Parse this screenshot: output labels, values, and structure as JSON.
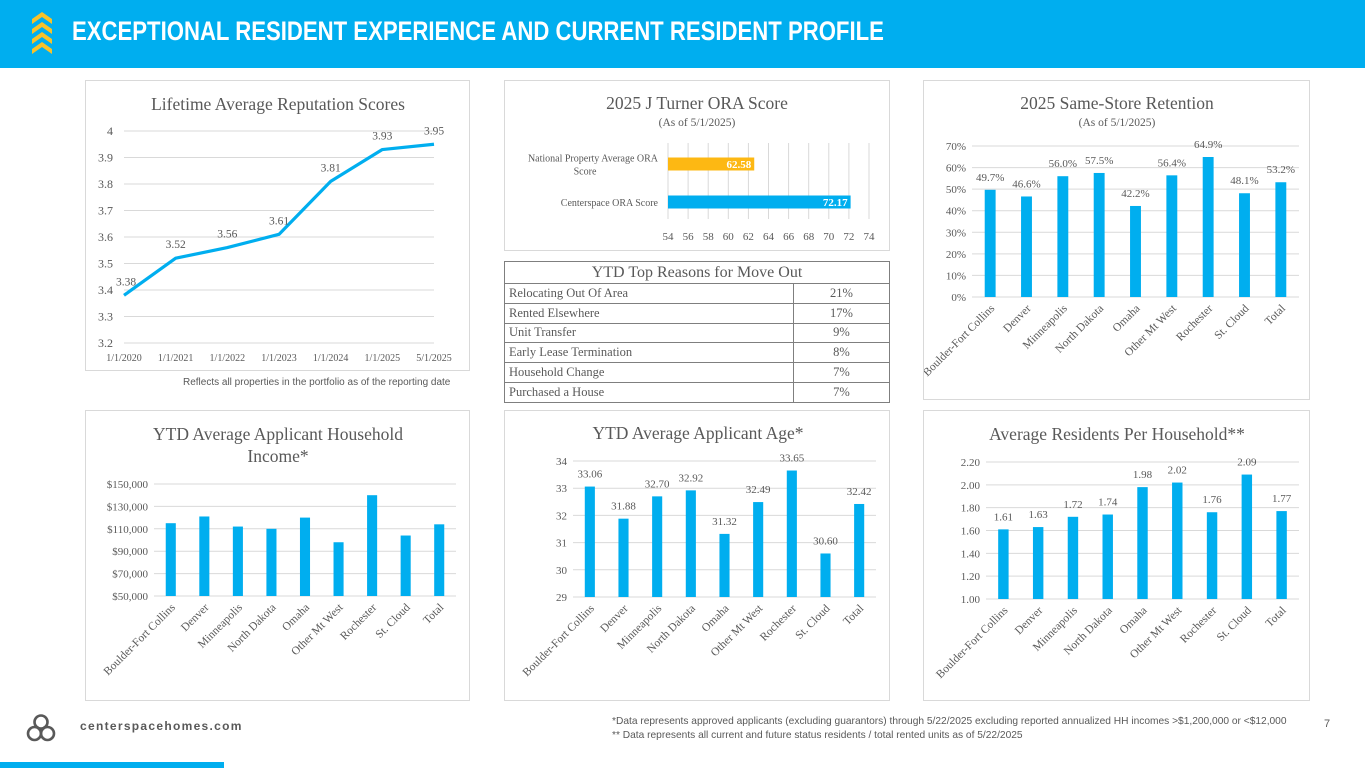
{
  "header": {
    "title": "EXCEPTIONAL RESIDENT EXPERIENCE AND CURRENT RESIDENT PROFILE",
    "logo_icon": "chevrons-up-icon",
    "accent_color": "#00aeef",
    "chevron_color": "#f7c22a"
  },
  "colors": {
    "bar": "#00aeef",
    "bar_secondary": "#fdb813",
    "grid": "#d9d9d9",
    "text": "#595959"
  },
  "reputation_note": "Reflects all properties in the portfolio as of the reporting date",
  "move_out_table": {
    "title": "YTD Top Reasons for Move Out",
    "rows": [
      {
        "reason": "Relocating Out Of Area",
        "pct": "21%"
      },
      {
        "reason": "Rented Elsewhere",
        "pct": "17%"
      },
      {
        "reason": "Unit Transfer",
        "pct": "9%"
      },
      {
        "reason": "Early Lease Termination",
        "pct": "8%"
      },
      {
        "reason": "Household Change",
        "pct": "7%"
      },
      {
        "reason": "Purchased a House",
        "pct": "7%"
      }
    ]
  },
  "footer": {
    "url": "centerspacehomes.com",
    "logo_icon": "centerspace-logo-icon",
    "footnote_1": "*Data represents approved applicants (excluding guarantors) through 5/22/2025 excluding reported annualized HH incomes >$1,200,000 or <$12,000",
    "footnote_2": "** Data represents all current and future status residents / total rented units as of 5/22/2025",
    "page_number": "7"
  },
  "chart_data": [
    {
      "id": "reputation",
      "type": "line",
      "title": "Lifetime Average Reputation Scores",
      "subtitle": "",
      "categories": [
        "1/1/2020",
        "1/1/2021",
        "1/1/2022",
        "1/1/2023",
        "1/1/2024",
        "1/1/2025",
        "5/1/2025"
      ],
      "values": [
        3.38,
        3.52,
        3.56,
        3.61,
        3.81,
        3.93,
        3.95
      ],
      "labels": [
        "3.38",
        "3.52",
        "3.56",
        "3.61",
        "3.81",
        "3.93",
        "3.95"
      ],
      "ylim": [
        3.2,
        4.0
      ],
      "yticks": [
        "3.2",
        "3.3",
        "3.4",
        "3.5",
        "3.6",
        "3.7",
        "3.8",
        "3.9",
        "4"
      ],
      "grid": true,
      "legend": "none"
    },
    {
      "id": "ora",
      "type": "bar",
      "orientation": "horizontal",
      "title": "2025 J Turner ORA Score",
      "subtitle": "(As of 5/1/2025)",
      "categories": [
        "National Property Average ORA Score",
        "Centerspace ORA Score"
      ],
      "category_lines": [
        [
          "National Property Average ORA",
          "Score"
        ],
        [
          "Centerspace ORA Score"
        ]
      ],
      "values": [
        62.58,
        72.17
      ],
      "labels": [
        "62.58",
        "72.17"
      ],
      "bar_colors": [
        "#fdb813",
        "#00aeef"
      ],
      "xlim": [
        54,
        74
      ],
      "xticks": [
        "54",
        "56",
        "58",
        "60",
        "62",
        "64",
        "66",
        "68",
        "70",
        "72",
        "74"
      ],
      "grid": true,
      "legend": "none"
    },
    {
      "id": "retention",
      "type": "bar",
      "title": "2025 Same-Store Retention",
      "subtitle": "(As of 5/1/2025)",
      "categories": [
        "Boulder-Fort Collins",
        "Denver",
        "Minneapolis",
        "North Dakota",
        "Omaha",
        "Other Mt West",
        "Rochester",
        "St. Cloud",
        "Total"
      ],
      "values": [
        49.7,
        46.6,
        56.0,
        57.5,
        42.2,
        56.4,
        64.9,
        48.1,
        53.2
      ],
      "labels": [
        "49.7%",
        "46.6%",
        "56.0%",
        "57.5%",
        "42.2%",
        "56.4%",
        "64.9%",
        "48.1%",
        "53.2%"
      ],
      "ylim": [
        0,
        70
      ],
      "yticks": [
        "0%",
        "10%",
        "20%",
        "30%",
        "40%",
        "50%",
        "60%",
        "70%"
      ],
      "ylabel": "",
      "grid": true,
      "legend": "none"
    },
    {
      "id": "income",
      "type": "bar",
      "title": "YTD Average Applicant Household Income*",
      "title_lines": [
        "YTD Average Applicant Household",
        "Income*"
      ],
      "subtitle": "",
      "categories": [
        "Boulder-Fort Collins",
        "Denver",
        "Minneapolis",
        "North Dakota",
        "Omaha",
        "Other Mt West",
        "Rochester",
        "St. Cloud",
        "Total"
      ],
      "values": [
        115000,
        121000,
        112000,
        110000,
        120000,
        98000,
        140000,
        104000,
        114000
      ],
      "labels": [],
      "ylim": [
        50000,
        150000
      ],
      "yticks": [
        "$50,000",
        "$70,000",
        "$90,000",
        "$110,000",
        "$130,000",
        "$150,000"
      ],
      "ytick_values": [
        50000,
        70000,
        90000,
        110000,
        130000,
        150000
      ],
      "grid": true,
      "legend": "none"
    },
    {
      "id": "age",
      "type": "bar",
      "title": "YTD Average Applicant Age*",
      "subtitle": "",
      "categories": [
        "Boulder-Fort Collins",
        "Denver",
        "Minneapolis",
        "North Dakota",
        "Omaha",
        "Other Mt West",
        "Rochester",
        "St. Cloud",
        "Total"
      ],
      "values": [
        33.06,
        31.88,
        32.7,
        32.92,
        31.32,
        32.49,
        33.65,
        30.6,
        32.42
      ],
      "labels": [
        "33.06",
        "31.88",
        "32.70",
        "32.92",
        "31.32",
        "32.49",
        "33.65",
        "30.60",
        "32.42"
      ],
      "ylim": [
        29,
        34
      ],
      "yticks": [
        "29",
        "30",
        "31",
        "32",
        "33",
        "34"
      ],
      "grid": true,
      "legend": "none"
    },
    {
      "id": "residents",
      "type": "bar",
      "title": "Average Residents Per Household**",
      "subtitle": "",
      "categories": [
        "Boulder-Fort Collins",
        "Denver",
        "Minneapolis",
        "North Dakota",
        "Omaha",
        "Other Mt West",
        "Rochester",
        "St. Cloud",
        "Total"
      ],
      "values": [
        1.61,
        1.63,
        1.72,
        1.74,
        1.98,
        2.02,
        1.76,
        2.09,
        1.77
      ],
      "labels": [
        "1.61",
        "1.63",
        "1.72",
        "1.74",
        "1.98",
        "2.02",
        "1.76",
        "2.09",
        "1.77"
      ],
      "ylim": [
        1.0,
        2.2
      ],
      "yticks": [
        "1.00",
        "1.20",
        "1.40",
        "1.60",
        "1.80",
        "2.00",
        "2.20"
      ],
      "grid": true,
      "legend": "none"
    }
  ]
}
